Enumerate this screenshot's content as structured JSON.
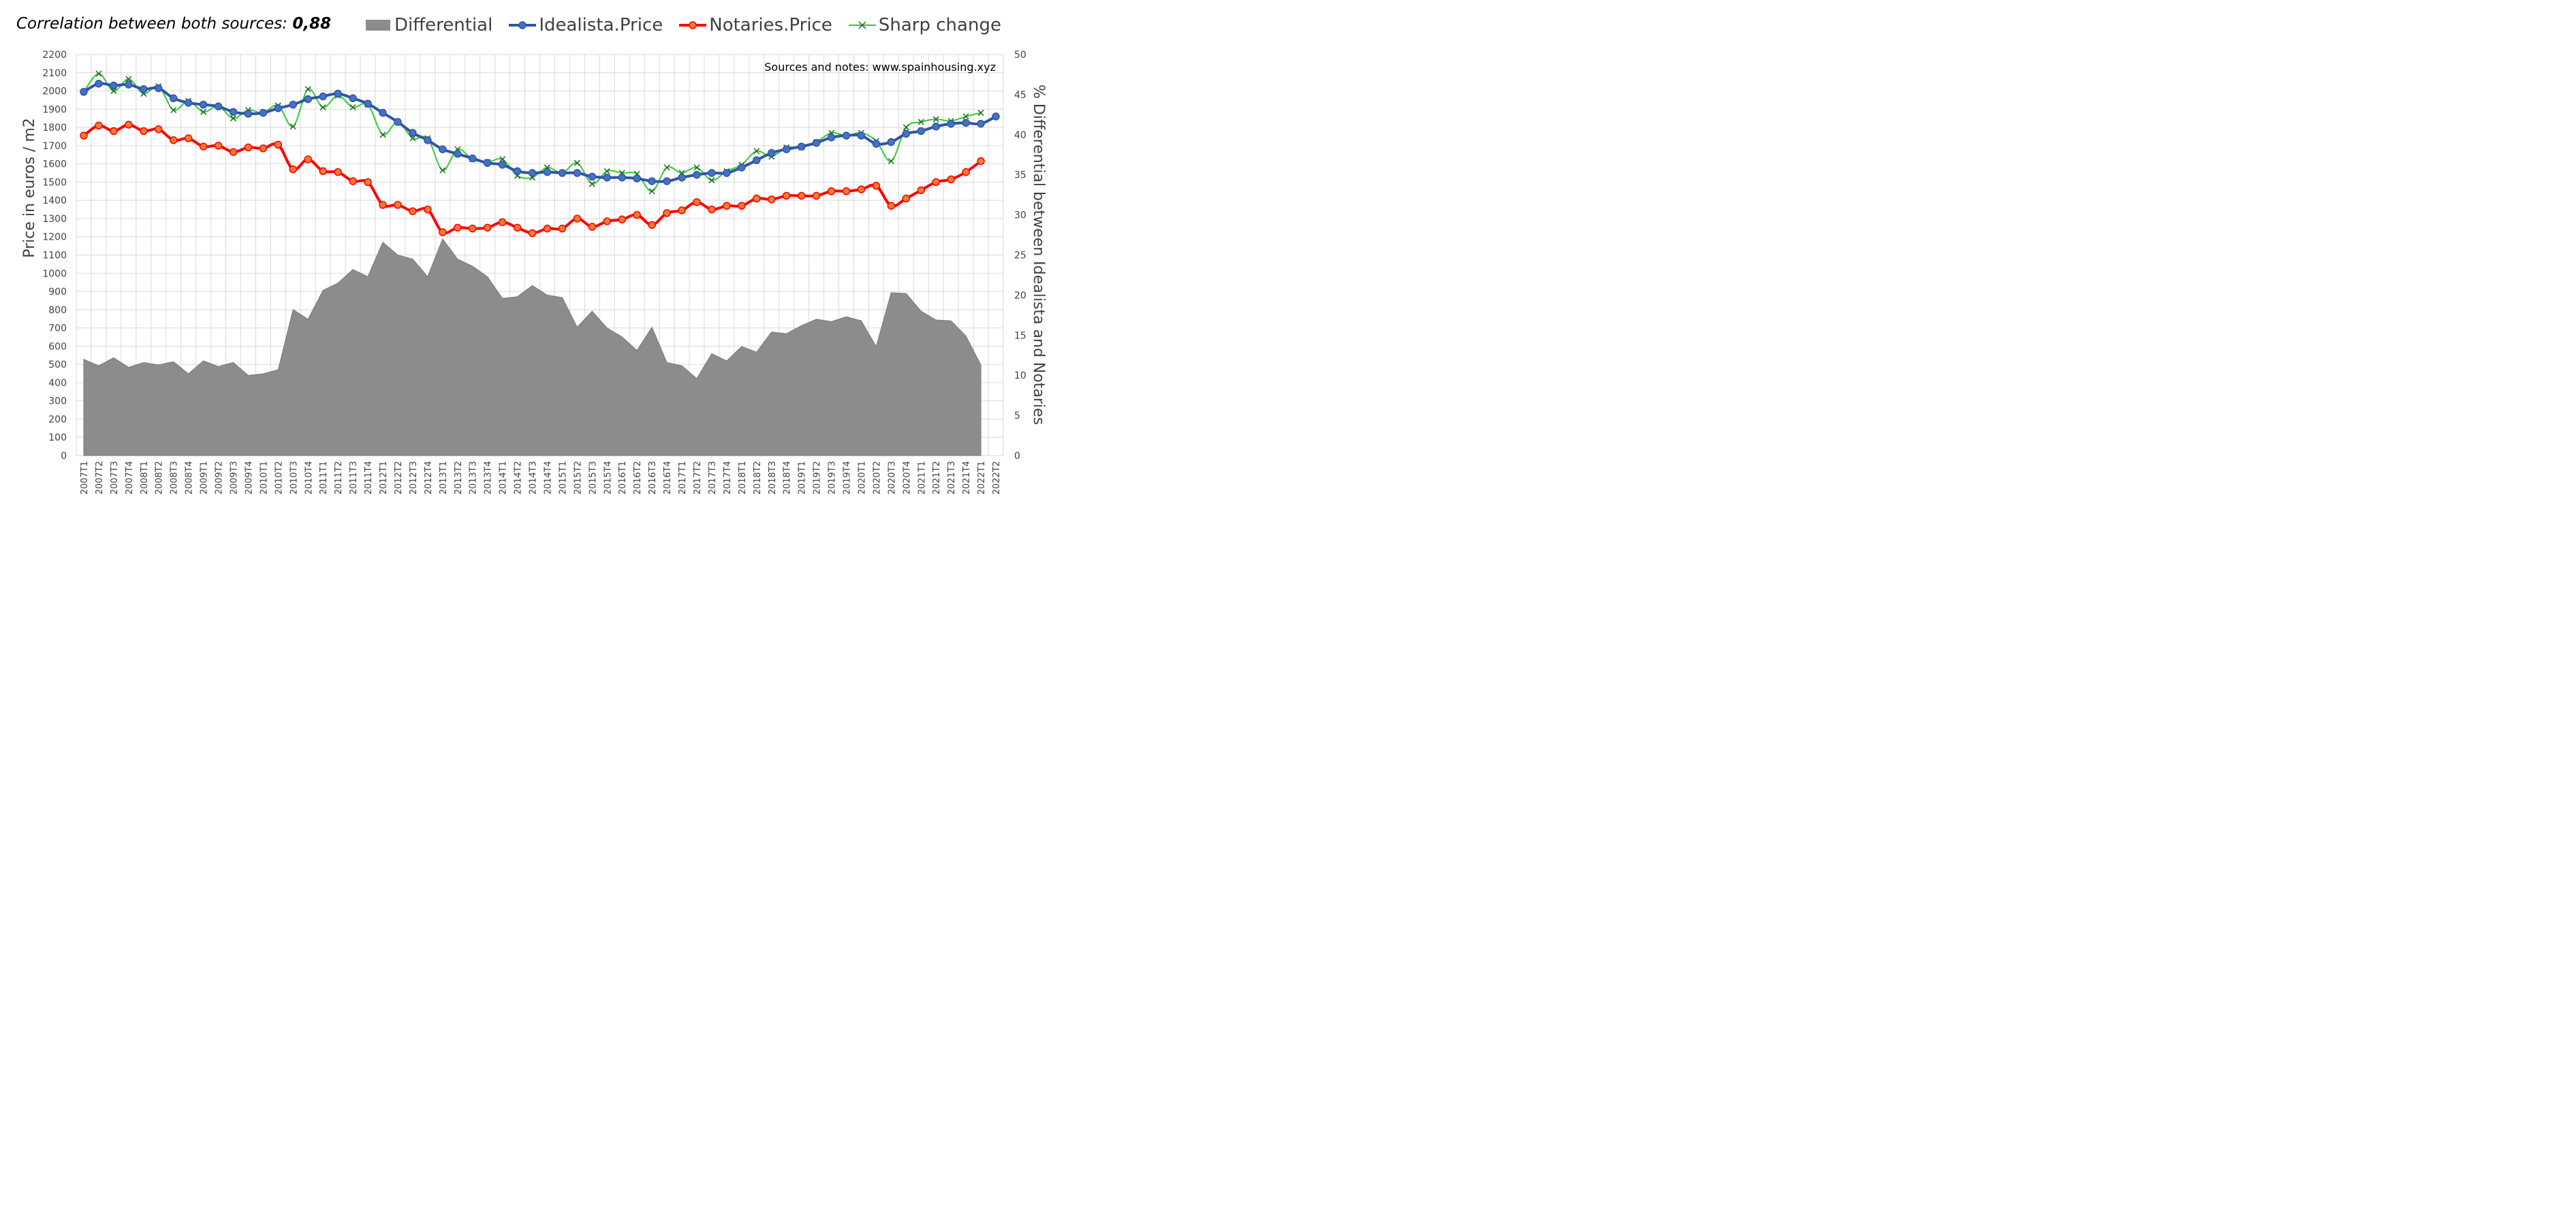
{
  "header": {
    "correlation_label": "Correlation between both sources: ",
    "correlation_value": "0,88"
  },
  "legend": [
    {
      "name": "Differential",
      "color": "#8c8c8c",
      "kind": "area"
    },
    {
      "name": "Idealista.Price",
      "color": "#2f55a4",
      "kind": "line-marker"
    },
    {
      "name": "Notaries.Price",
      "color": "#ff0000",
      "kind": "line-circle"
    },
    {
      "name": "Sharp change",
      "color": "#33cc33",
      "kind": "line-x"
    }
  ],
  "note": "Sources and notes: www.spainhousing.xyz",
  "chart_data": {
    "type": "line",
    "categories": [
      "2007T1",
      "2007T2",
      "2007T3",
      "2007T4",
      "2008T1",
      "2008T2",
      "2008T3",
      "2008T4",
      "2009T1",
      "2009T2",
      "2009T3",
      "2009T4",
      "2010T1",
      "2010T2",
      "2010T3",
      "2010T4",
      "2011T1",
      "2011T2",
      "2011T3",
      "2011T4",
      "2012T1",
      "2012T2",
      "2012T3",
      "2012T4",
      "2013T1",
      "2013T2",
      "2013T3",
      "2013T4",
      "2014T1",
      "2014T2",
      "2014T3",
      "2014T4",
      "2015T1",
      "2015T2",
      "2015T3",
      "2015T4",
      "2016T1",
      "2016T2",
      "2016T3",
      "2016T4",
      "2017T1",
      "2017T2",
      "2017T3",
      "2017T4",
      "2018T1",
      "2018T2",
      "2018T3",
      "2018T4",
      "2019T1",
      "2019T2",
      "2019T3",
      "2019T4",
      "2020T1",
      "2020T2",
      "2020T3",
      "2020T4",
      "2021T1",
      "2021T2",
      "2021T3",
      "2021T4",
      "2022T1",
      "2022T2"
    ],
    "ylabel": "Price in euros / m2",
    "y2label": "% Differential between Idealista and Notaries",
    "ylim": [
      0,
      2200
    ],
    "y2lim": [
      0,
      50
    ],
    "yticks": [
      0,
      100,
      200,
      300,
      400,
      500,
      600,
      700,
      800,
      900,
      1000,
      1100,
      1200,
      1300,
      1400,
      1500,
      1600,
      1700,
      1800,
      1900,
      2000,
      2100,
      2200
    ],
    "y2ticks": [
      0,
      5,
      10,
      15,
      20,
      25,
      30,
      35,
      40,
      45,
      50
    ],
    "grid": true,
    "series": [
      {
        "name": "Differential",
        "axis": "right",
        "type": "area",
        "values": [
          12.0,
          11.2,
          12.2,
          11.0,
          11.6,
          11.3,
          11.7,
          10.2,
          11.8,
          11.1,
          11.6,
          10.0,
          10.2,
          10.7,
          18.2,
          17.0,
          20.6,
          21.5,
          23.2,
          22.3,
          26.6,
          25.0,
          24.5,
          22.3,
          27.0,
          24.5,
          23.6,
          22.3,
          19.6,
          19.8,
          21.2,
          20.0,
          19.7,
          16.0,
          18.0,
          15.9,
          14.8,
          13.1,
          16.0,
          11.6,
          11.2,
          9.6,
          12.7,
          11.8,
          13.6,
          12.9,
          15.4,
          15.2,
          16.2,
          17.0,
          16.7,
          17.3,
          16.8,
          13.6,
          20.3,
          20.2,
          18.0,
          16.9,
          16.8,
          14.9,
          11.3,
          null
        ]
      },
      {
        "name": "Idealista.Price",
        "axis": "left",
        "type": "line",
        "values": [
          1995,
          2040,
          2030,
          2035,
          2010,
          2015,
          1960,
          1935,
          1925,
          1915,
          1885,
          1875,
          1880,
          1905,
          1925,
          1955,
          1970,
          1985,
          1960,
          1930,
          1880,
          1830,
          1770,
          1730,
          1680,
          1655,
          1630,
          1605,
          1595,
          1560,
          1550,
          1555,
          1550,
          1550,
          1530,
          1525,
          1525,
          1520,
          1505,
          1505,
          1525,
          1540,
          1550,
          1550,
          1580,
          1620,
          1660,
          1680,
          1695,
          1715,
          1745,
          1755,
          1755,
          1710,
          1720,
          1765,
          1780,
          1805,
          1820,
          1825,
          1820,
          1860
        ]
      },
      {
        "name": "Notaries.Price",
        "axis": "left",
        "type": "line",
        "values": [
          1755,
          1810,
          1780,
          1815,
          1780,
          1790,
          1730,
          1740,
          1695,
          1700,
          1665,
          1690,
          1685,
          1705,
          1570,
          1625,
          1560,
          1555,
          1505,
          1500,
          1375,
          1375,
          1340,
          1350,
          1225,
          1250,
          1245,
          1250,
          1280,
          1250,
          1220,
          1245,
          1245,
          1300,
          1255,
          1285,
          1295,
          1320,
          1265,
          1330,
          1345,
          1390,
          1350,
          1370,
          1370,
          1410,
          1405,
          1425,
          1425,
          1425,
          1450,
          1450,
          1460,
          1480,
          1370,
          1410,
          1455,
          1500,
          1515,
          1555,
          1615,
          null
        ]
      },
      {
        "name": "Sharp change",
        "axis": "left",
        "type": "line",
        "values": [
          1995,
          2095,
          2000,
          2065,
          1985,
          2025,
          1895,
          1945,
          1885,
          1915,
          1850,
          1895,
          1880,
          1920,
          1805,
          2010,
          1910,
          1975,
          1910,
          1925,
          1760,
          1830,
          1740,
          1740,
          1565,
          1680,
          1625,
          1610,
          1625,
          1535,
          1525,
          1580,
          1550,
          1605,
          1490,
          1560,
          1550,
          1545,
          1450,
          1580,
          1550,
          1580,
          1510,
          1560,
          1595,
          1670,
          1640,
          1690,
          1690,
          1720,
          1770,
          1755,
          1770,
          1725,
          1615,
          1800,
          1830,
          1845,
          1835,
          1860,
          1880,
          null
        ]
      }
    ]
  }
}
